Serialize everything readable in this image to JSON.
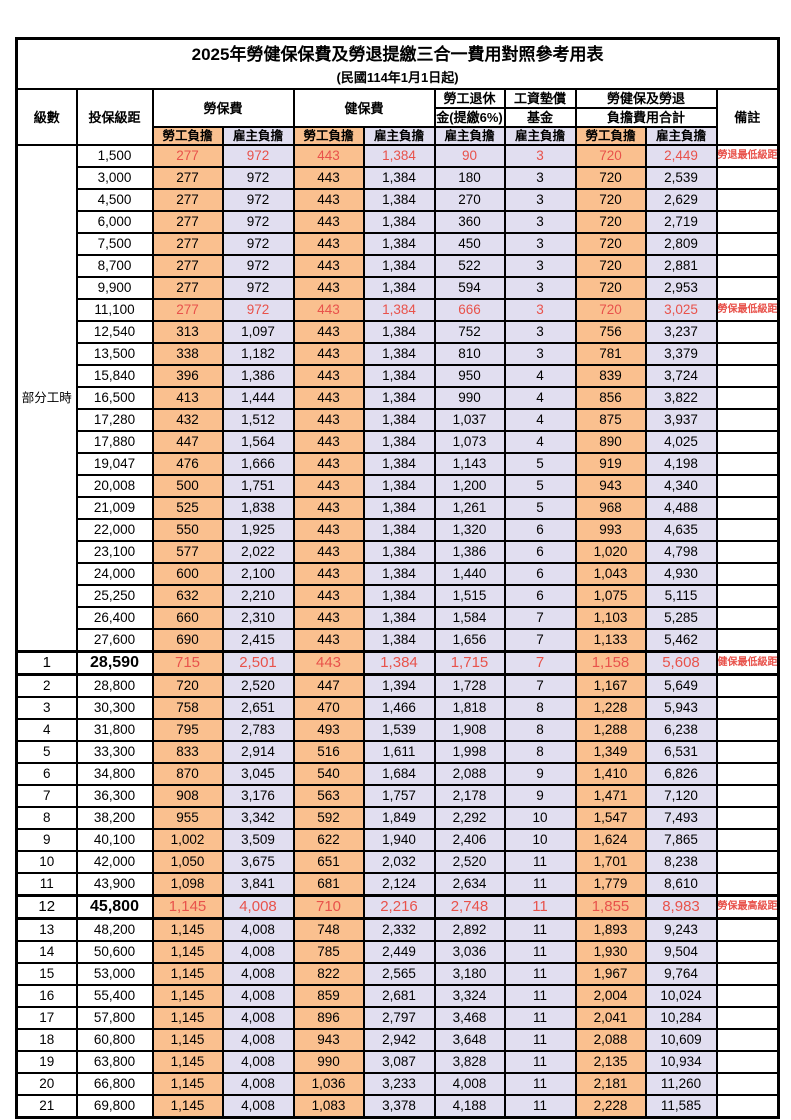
{
  "title": "2025年勞健保保費及勞退提繳三合一費用對照參考用表",
  "subtitle": "(民國114年1月1日起)",
  "colors": {
    "employee_column_bg": "#FAC08F",
    "employer_column_bg": "#E1DEF0",
    "highlight_text": "#E8524B",
    "border": "#000000"
  },
  "header": {
    "level": "級數",
    "bracket": "投保級距",
    "labor_fee": "勞保費",
    "health_fee": "健保費",
    "pension_line1": "勞工退休",
    "pension_line2": "金(提繳6%)",
    "fund_line1": "工資墊償",
    "fund_line2": "基金",
    "total_line1": "勞健保及勞退",
    "total_line2": "負擔費用合計",
    "remark": "備註",
    "employee": "勞工負擔",
    "employer": "雇主負擔"
  },
  "table": {
    "part_time_label": "部分工時",
    "part_time_rowspan": 23,
    "rows": [
      {
        "level": "",
        "bracket": "1,500",
        "values": [
          "277",
          "972",
          "443",
          "1,384",
          "90",
          "3",
          "720",
          "2,449"
        ],
        "remark": "勞退最低級距",
        "red": true,
        "part_time": true
      },
      {
        "level": "",
        "bracket": "3,000",
        "values": [
          "277",
          "972",
          "443",
          "1,384",
          "180",
          "3",
          "720",
          "2,539"
        ],
        "remark": "",
        "part_time": true
      },
      {
        "level": "",
        "bracket": "4,500",
        "values": [
          "277",
          "972",
          "443",
          "1,384",
          "270",
          "3",
          "720",
          "2,629"
        ],
        "remark": "",
        "part_time": true
      },
      {
        "level": "",
        "bracket": "6,000",
        "values": [
          "277",
          "972",
          "443",
          "1,384",
          "360",
          "3",
          "720",
          "2,719"
        ],
        "remark": "",
        "part_time": true
      },
      {
        "level": "",
        "bracket": "7,500",
        "values": [
          "277",
          "972",
          "443",
          "1,384",
          "450",
          "3",
          "720",
          "2,809"
        ],
        "remark": "",
        "part_time": true
      },
      {
        "level": "",
        "bracket": "8,700",
        "values": [
          "277",
          "972",
          "443",
          "1,384",
          "522",
          "3",
          "720",
          "2,881"
        ],
        "remark": "",
        "part_time": true
      },
      {
        "level": "",
        "bracket": "9,900",
        "values": [
          "277",
          "972",
          "443",
          "1,384",
          "594",
          "3",
          "720",
          "2,953"
        ],
        "remark": "",
        "part_time": true
      },
      {
        "level": "",
        "bracket": "11,100",
        "values": [
          "277",
          "972",
          "443",
          "1,384",
          "666",
          "3",
          "720",
          "3,025"
        ],
        "remark": "勞保最低級距",
        "red": true,
        "part_time": true
      },
      {
        "level": "",
        "bracket": "12,540",
        "values": [
          "313",
          "1,097",
          "443",
          "1,384",
          "752",
          "3",
          "756",
          "3,237"
        ],
        "remark": "",
        "part_time": true
      },
      {
        "level": "",
        "bracket": "13,500",
        "values": [
          "338",
          "1,182",
          "443",
          "1,384",
          "810",
          "3",
          "781",
          "3,379"
        ],
        "remark": "",
        "part_time": true
      },
      {
        "level": "",
        "bracket": "15,840",
        "values": [
          "396",
          "1,386",
          "443",
          "1,384",
          "950",
          "4",
          "839",
          "3,724"
        ],
        "remark": "",
        "part_time": true
      },
      {
        "level": "",
        "bracket": "16,500",
        "values": [
          "413",
          "1,444",
          "443",
          "1,384",
          "990",
          "4",
          "856",
          "3,822"
        ],
        "remark": "",
        "part_time": true
      },
      {
        "level": "",
        "bracket": "17,280",
        "values": [
          "432",
          "1,512",
          "443",
          "1,384",
          "1,037",
          "4",
          "875",
          "3,937"
        ],
        "remark": "",
        "part_time": true
      },
      {
        "level": "",
        "bracket": "17,880",
        "values": [
          "447",
          "1,564",
          "443",
          "1,384",
          "1,073",
          "4",
          "890",
          "4,025"
        ],
        "remark": "",
        "part_time": true
      },
      {
        "level": "",
        "bracket": "19,047",
        "values": [
          "476",
          "1,666",
          "443",
          "1,384",
          "1,143",
          "5",
          "919",
          "4,198"
        ],
        "remark": "",
        "part_time": true
      },
      {
        "level": "",
        "bracket": "20,008",
        "values": [
          "500",
          "1,751",
          "443",
          "1,384",
          "1,200",
          "5",
          "943",
          "4,340"
        ],
        "remark": "",
        "part_time": true
      },
      {
        "level": "",
        "bracket": "21,009",
        "values": [
          "525",
          "1,838",
          "443",
          "1,384",
          "1,261",
          "5",
          "968",
          "4,488"
        ],
        "remark": "",
        "part_time": true
      },
      {
        "level": "",
        "bracket": "22,000",
        "values": [
          "550",
          "1,925",
          "443",
          "1,384",
          "1,320",
          "6",
          "993",
          "4,635"
        ],
        "remark": "",
        "part_time": true
      },
      {
        "level": "",
        "bracket": "23,100",
        "values": [
          "577",
          "2,022",
          "443",
          "1,384",
          "1,386",
          "6",
          "1,020",
          "4,798"
        ],
        "remark": "",
        "part_time": true
      },
      {
        "level": "",
        "bracket": "24,000",
        "values": [
          "600",
          "2,100",
          "443",
          "1,384",
          "1,440",
          "6",
          "1,043",
          "4,930"
        ],
        "remark": "",
        "part_time": true
      },
      {
        "level": "",
        "bracket": "25,250",
        "values": [
          "632",
          "2,210",
          "443",
          "1,384",
          "1,515",
          "6",
          "1,075",
          "5,115"
        ],
        "remark": "",
        "part_time": true
      },
      {
        "level": "",
        "bracket": "26,400",
        "values": [
          "660",
          "2,310",
          "443",
          "1,384",
          "1,584",
          "7",
          "1,103",
          "5,285"
        ],
        "remark": "",
        "part_time": true
      },
      {
        "level": "",
        "bracket": "27,600",
        "values": [
          "690",
          "2,415",
          "443",
          "1,384",
          "1,656",
          "7",
          "1,133",
          "5,462"
        ],
        "remark": "",
        "part_time": true
      },
      {
        "level": "1",
        "bracket": "28,590",
        "values": [
          "715",
          "2,501",
          "443",
          "1,384",
          "1,715",
          "7",
          "1,158",
          "5,608"
        ],
        "remark": "健保最低級距",
        "red": true,
        "big": true
      },
      {
        "level": "2",
        "bracket": "28,800",
        "values": [
          "720",
          "2,520",
          "447",
          "1,394",
          "1,728",
          "7",
          "1,167",
          "5,649"
        ],
        "remark": ""
      },
      {
        "level": "3",
        "bracket": "30,300",
        "values": [
          "758",
          "2,651",
          "470",
          "1,466",
          "1,818",
          "8",
          "1,228",
          "5,943"
        ],
        "remark": ""
      },
      {
        "level": "4",
        "bracket": "31,800",
        "values": [
          "795",
          "2,783",
          "493",
          "1,539",
          "1,908",
          "8",
          "1,288",
          "6,238"
        ],
        "remark": ""
      },
      {
        "level": "5",
        "bracket": "33,300",
        "values": [
          "833",
          "2,914",
          "516",
          "1,611",
          "1,998",
          "8",
          "1,349",
          "6,531"
        ],
        "remark": ""
      },
      {
        "level": "6",
        "bracket": "34,800",
        "values": [
          "870",
          "3,045",
          "540",
          "1,684",
          "2,088",
          "9",
          "1,410",
          "6,826"
        ],
        "remark": ""
      },
      {
        "level": "7",
        "bracket": "36,300",
        "values": [
          "908",
          "3,176",
          "563",
          "1,757",
          "2,178",
          "9",
          "1,471",
          "7,120"
        ],
        "remark": ""
      },
      {
        "level": "8",
        "bracket": "38,200",
        "values": [
          "955",
          "3,342",
          "592",
          "1,849",
          "2,292",
          "10",
          "1,547",
          "7,493"
        ],
        "remark": ""
      },
      {
        "level": "9",
        "bracket": "40,100",
        "values": [
          "1,002",
          "3,509",
          "622",
          "1,940",
          "2,406",
          "10",
          "1,624",
          "7,865"
        ],
        "remark": ""
      },
      {
        "level": "10",
        "bracket": "42,000",
        "values": [
          "1,050",
          "3,675",
          "651",
          "2,032",
          "2,520",
          "11",
          "1,701",
          "8,238"
        ],
        "remark": ""
      },
      {
        "level": "11",
        "bracket": "43,900",
        "values": [
          "1,098",
          "3,841",
          "681",
          "2,124",
          "2,634",
          "11",
          "1,779",
          "8,610"
        ],
        "remark": ""
      },
      {
        "level": "12",
        "bracket": "45,800",
        "values": [
          "1,145",
          "4,008",
          "710",
          "2,216",
          "2,748",
          "11",
          "1,855",
          "8,983"
        ],
        "remark": "勞保最高級距",
        "red": true,
        "big": true
      },
      {
        "level": "13",
        "bracket": "48,200",
        "values": [
          "1,145",
          "4,008",
          "748",
          "2,332",
          "2,892",
          "11",
          "1,893",
          "9,243"
        ],
        "remark": ""
      },
      {
        "level": "14",
        "bracket": "50,600",
        "values": [
          "1,145",
          "4,008",
          "785",
          "2,449",
          "3,036",
          "11",
          "1,930",
          "9,504"
        ],
        "remark": ""
      },
      {
        "level": "15",
        "bracket": "53,000",
        "values": [
          "1,145",
          "4,008",
          "822",
          "2,565",
          "3,180",
          "11",
          "1,967",
          "9,764"
        ],
        "remark": ""
      },
      {
        "level": "16",
        "bracket": "55,400",
        "values": [
          "1,145",
          "4,008",
          "859",
          "2,681",
          "3,324",
          "11",
          "2,004",
          "10,024"
        ],
        "remark": ""
      },
      {
        "level": "17",
        "bracket": "57,800",
        "values": [
          "1,145",
          "4,008",
          "896",
          "2,797",
          "3,468",
          "11",
          "2,041",
          "10,284"
        ],
        "remark": ""
      },
      {
        "level": "18",
        "bracket": "60,800",
        "values": [
          "1,145",
          "4,008",
          "943",
          "2,942",
          "3,648",
          "11",
          "2,088",
          "10,609"
        ],
        "remark": ""
      },
      {
        "level": "19",
        "bracket": "63,800",
        "values": [
          "1,145",
          "4,008",
          "990",
          "3,087",
          "3,828",
          "11",
          "2,135",
          "10,934"
        ],
        "remark": ""
      },
      {
        "level": "20",
        "bracket": "66,800",
        "values": [
          "1,145",
          "4,008",
          "1,036",
          "3,233",
          "4,008",
          "11",
          "2,181",
          "11,260"
        ],
        "remark": ""
      },
      {
        "level": "21",
        "bracket": "69,800",
        "values": [
          "1,145",
          "4,008",
          "1,083",
          "3,378",
          "4,188",
          "11",
          "2,228",
          "11,585"
        ],
        "remark": ""
      }
    ]
  }
}
